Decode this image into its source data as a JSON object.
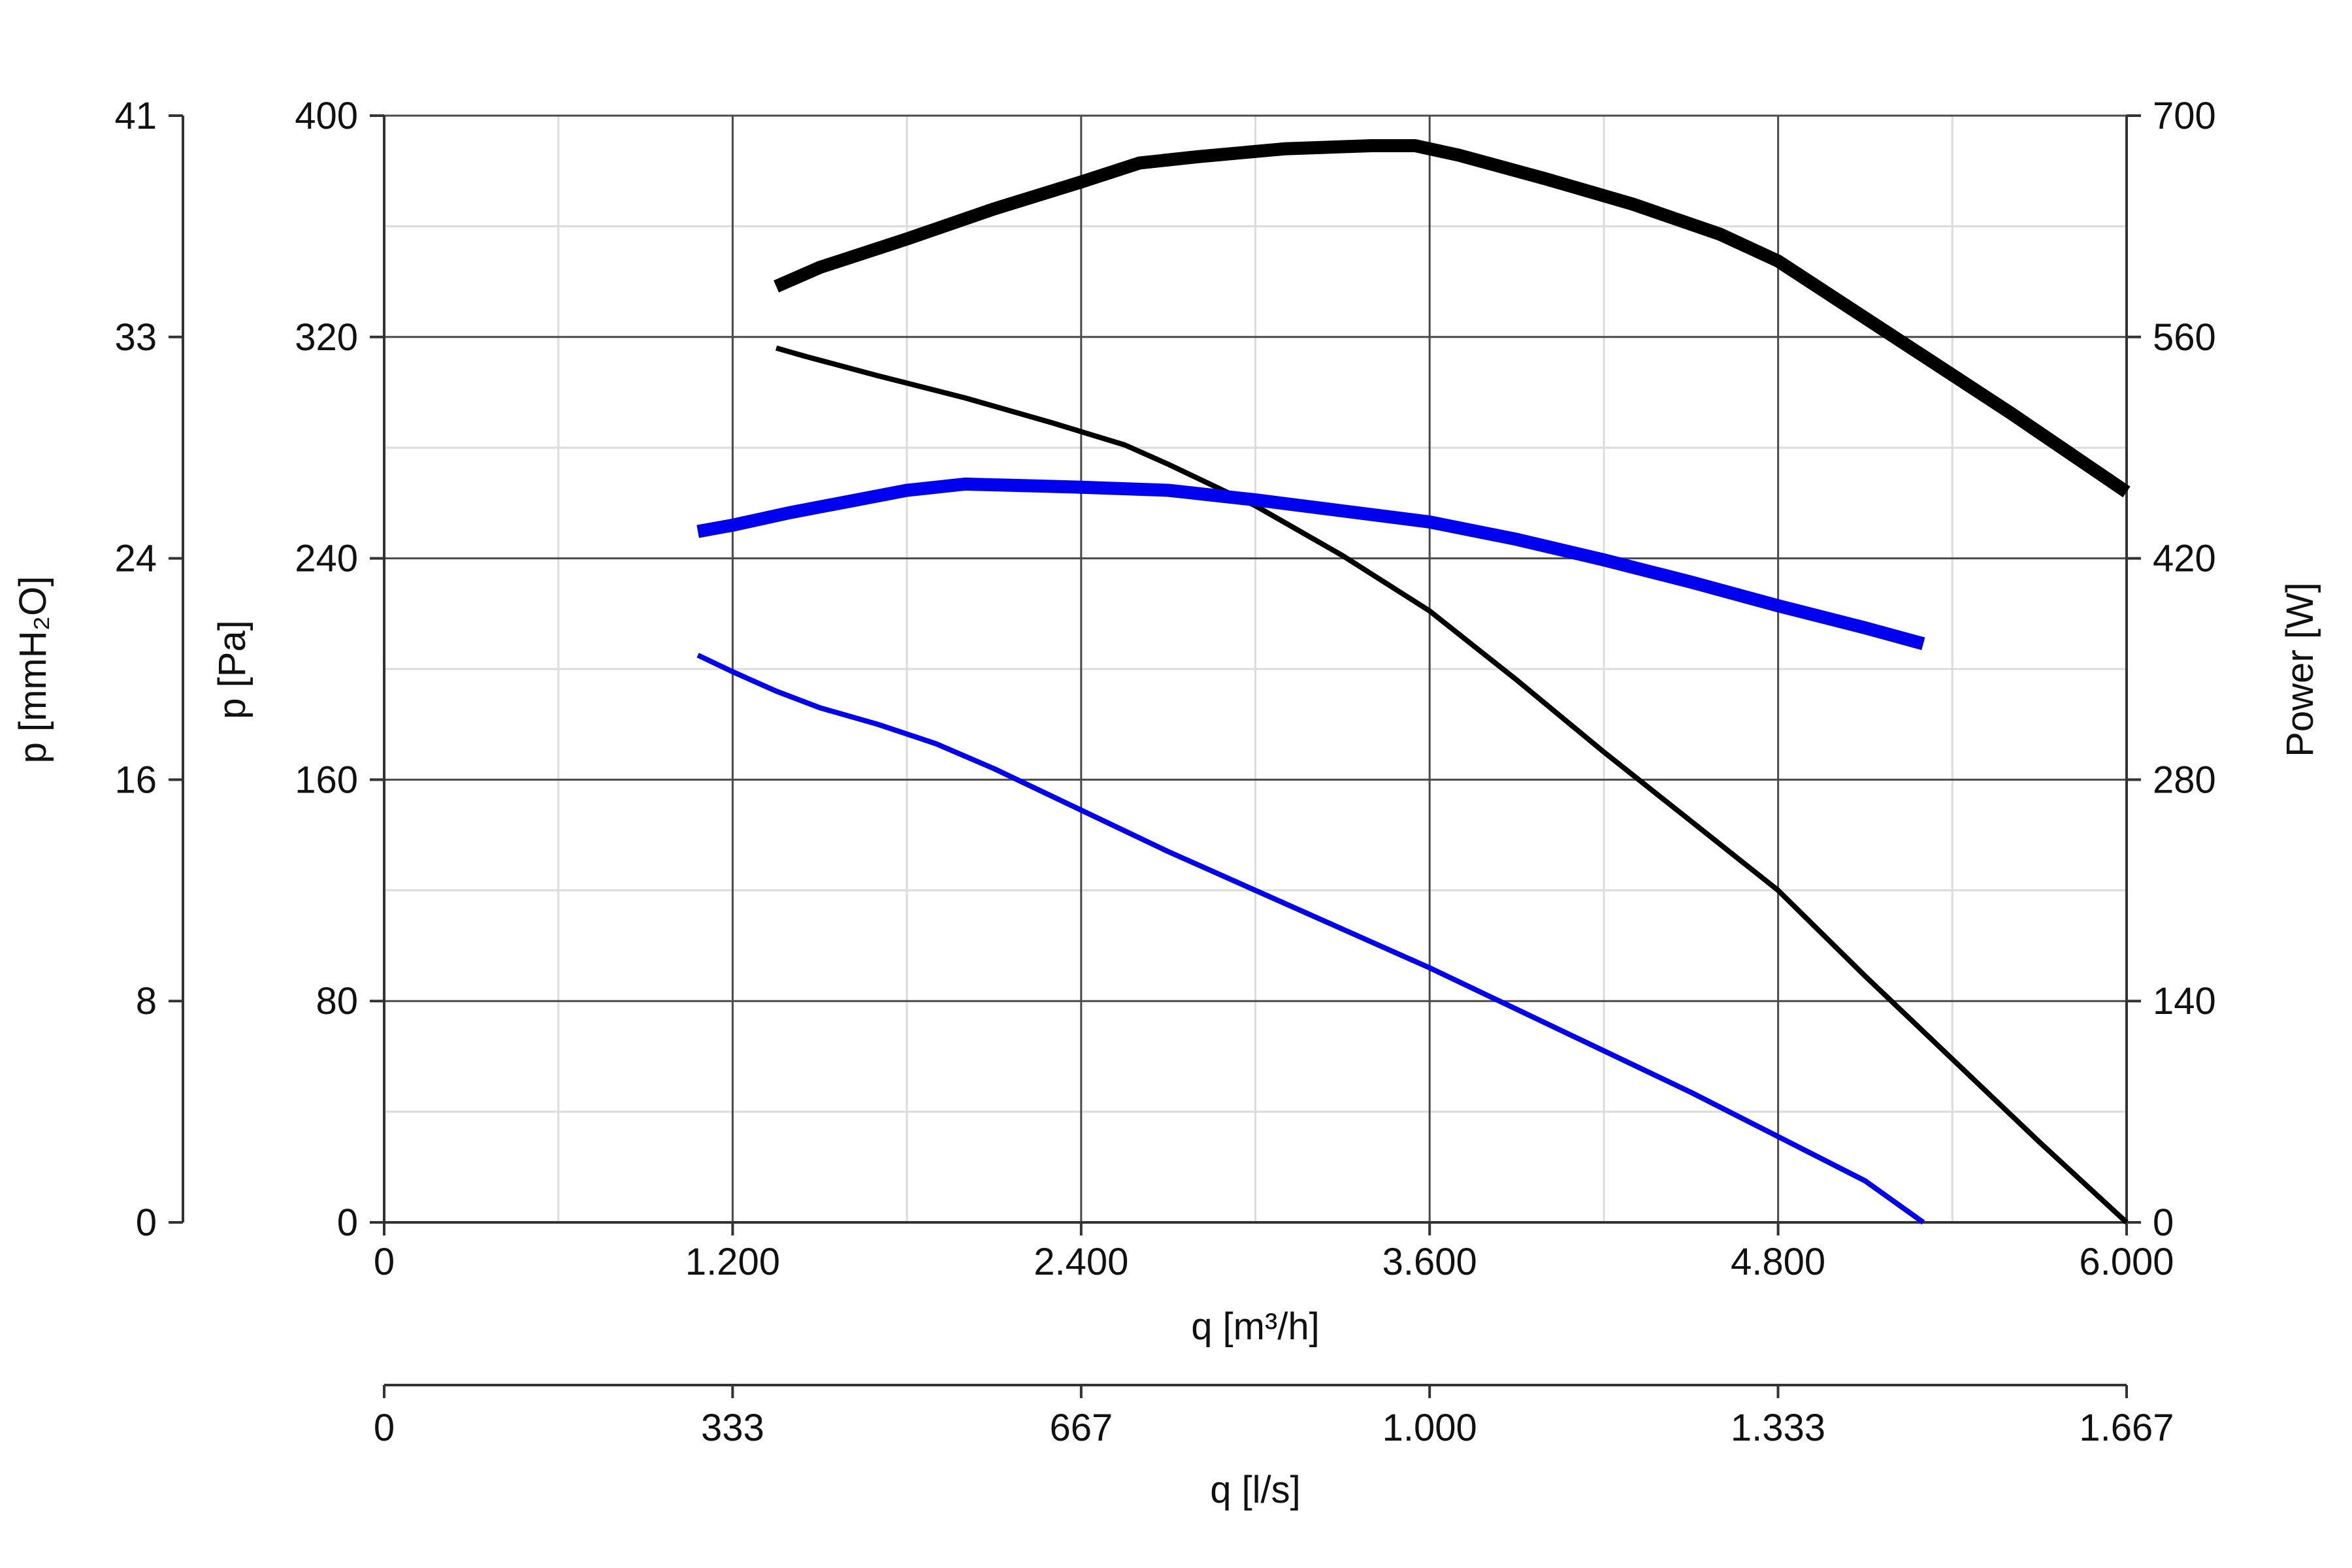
{
  "chart_data": {
    "type": "line",
    "x_axis_primary": {
      "label": "q [m³/h]",
      "range": [
        0,
        6000
      ],
      "ticks": [
        0,
        1200,
        2400,
        3600,
        4800,
        6000
      ],
      "tick_labels": [
        "0",
        "1.200",
        "2.400",
        "3.600",
        "4.800",
        "6.000"
      ],
      "minor_grid": [
        600,
        1800,
        3000,
        4200,
        5400
      ]
    },
    "x_axis_secondary": {
      "label": "q [l/s]",
      "range": [
        0,
        1666.7
      ],
      "ticks": [
        0,
        333.3,
        666.7,
        1000,
        1333.3,
        1666.7
      ],
      "tick_labels": [
        "0",
        "333",
        "667",
        "1.000",
        "1.333",
        "1.667"
      ]
    },
    "y_axis_primary": {
      "label": "p [Pa]",
      "range": [
        0,
        400
      ],
      "ticks": [
        0,
        80,
        160,
        240,
        320,
        400
      ],
      "tick_labels": [
        "0",
        "80",
        "160",
        "240",
        "320",
        "400"
      ],
      "minor_grid": [
        40,
        120,
        200,
        280,
        360
      ]
    },
    "y_axis_secondary_left": {
      "label": "p [mmH₂O]",
      "range": [
        0,
        40.8
      ],
      "tick_labels": [
        "0",
        "8",
        "16",
        "24",
        "33",
        "41"
      ]
    },
    "y_axis_right": {
      "label": "Power [W]",
      "range": [
        0,
        700
      ],
      "ticks": [
        0,
        140,
        280,
        420,
        560,
        700
      ],
      "tick_labels": [
        "0",
        "140",
        "280",
        "420",
        "560",
        "700"
      ]
    },
    "grid": true,
    "series": [
      {
        "axis": "pressure",
        "color": "#000000",
        "weight": "thin",
        "points": [
          [
            1350,
            316
          ],
          [
            1450,
            313
          ],
          [
            1700,
            306
          ],
          [
            2000,
            298
          ],
          [
            2300,
            289
          ],
          [
            2550,
            281
          ],
          [
            2700,
            274
          ],
          [
            3000,
            259
          ],
          [
            3300,
            241
          ],
          [
            3600,
            221
          ],
          [
            3900,
            196
          ],
          [
            4200,
            170
          ],
          [
            4500,
            145
          ],
          [
            4800,
            120
          ],
          [
            5100,
            89
          ],
          [
            5400,
            59
          ],
          [
            5700,
            29
          ],
          [
            6000,
            0
          ]
        ]
      },
      {
        "axis": "pressure",
        "color": "#0000ee",
        "weight": "thin",
        "points": [
          [
            1080,
            205
          ],
          [
            1200,
            199
          ],
          [
            1350,
            192
          ],
          [
            1500,
            186
          ],
          [
            1700,
            180
          ],
          [
            1900,
            173
          ],
          [
            2100,
            164
          ],
          [
            2400,
            149
          ],
          [
            2700,
            134
          ],
          [
            3000,
            120
          ],
          [
            3300,
            106
          ],
          [
            3600,
            92
          ],
          [
            3900,
            77
          ],
          [
            4200,
            62
          ],
          [
            4500,
            47
          ],
          [
            4800,
            31
          ],
          [
            5100,
            15
          ],
          [
            5300,
            0
          ]
        ]
      },
      {
        "axis": "power",
        "color": "#000000",
        "weight": "thick",
        "points": [
          [
            1350,
            592
          ],
          [
            1500,
            604
          ],
          [
            1800,
            622
          ],
          [
            2100,
            641
          ],
          [
            2400,
            658
          ],
          [
            2600,
            670
          ],
          [
            2800,
            674
          ],
          [
            3100,
            679
          ],
          [
            3400,
            681
          ],
          [
            3550,
            681
          ],
          [
            3700,
            675
          ],
          [
            4000,
            660
          ],
          [
            4300,
            644
          ],
          [
            4600,
            625
          ],
          [
            4800,
            608
          ],
          [
            5000,
            584
          ],
          [
            5300,
            548
          ],
          [
            5600,
            512
          ],
          [
            6000,
            462
          ]
        ]
      },
      {
        "axis": "power",
        "color": "#0000ee",
        "weight": "thick",
        "points": [
          [
            1080,
            437
          ],
          [
            1200,
            441
          ],
          [
            1400,
            449
          ],
          [
            1600,
            456
          ],
          [
            1800,
            463
          ],
          [
            2000,
            467
          ],
          [
            2200,
            466
          ],
          [
            2400,
            465
          ],
          [
            2700,
            463
          ],
          [
            3000,
            457
          ],
          [
            3300,
            450
          ],
          [
            3600,
            443
          ],
          [
            3900,
            432
          ],
          [
            4200,
            419
          ],
          [
            4500,
            405
          ],
          [
            4800,
            390
          ],
          [
            5100,
            376
          ],
          [
            5300,
            366
          ]
        ]
      }
    ]
  }
}
